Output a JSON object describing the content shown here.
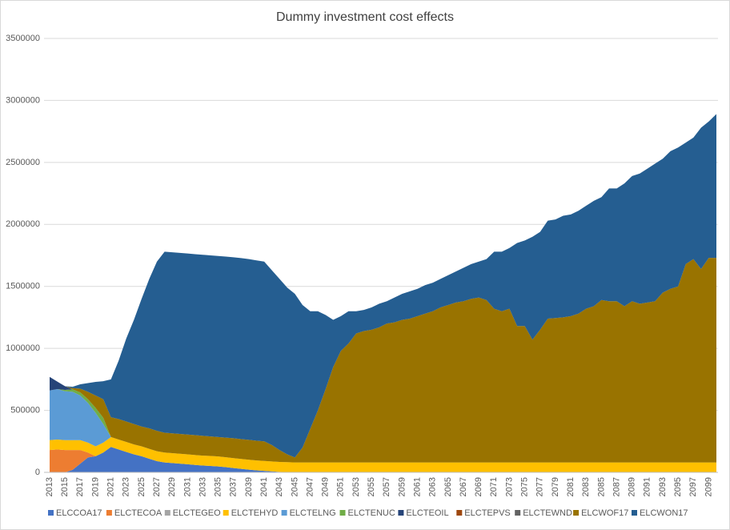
{
  "chart_data": {
    "type": "stacked_area",
    "title": "Dummy investment cost effects",
    "categories": [
      "2013",
      null,
      "2015",
      null,
      "2017",
      null,
      "2019",
      null,
      "2021",
      null,
      "2023",
      null,
      "2025",
      null,
      "2027",
      null,
      "2029",
      null,
      "2031",
      null,
      "2033",
      null,
      "2035",
      null,
      "2037",
      null,
      "2039",
      null,
      "2041",
      null,
      "2043",
      null,
      "2045",
      null,
      "2047",
      null,
      "2049",
      null,
      "2051",
      null,
      "2053",
      null,
      "2055",
      null,
      "2057",
      null,
      "2059",
      null,
      "2061",
      null,
      "2063",
      null,
      "2065",
      null,
      "2067",
      null,
      "2069",
      null,
      "2071",
      null,
      "2073",
      null,
      "2075",
      null,
      "2077",
      null,
      "2079",
      null,
      "2081",
      null,
      "2083",
      null,
      "2085",
      null,
      "2087",
      null,
      "2089",
      null,
      "2091",
      null,
      "2093",
      null,
      "2095",
      null,
      "2097",
      null,
      "2099",
      null
    ],
    "ylim": [
      0,
      3500000
    ],
    "yticks": [
      0,
      500000,
      1000000,
      1500000,
      2000000,
      2500000,
      3000000,
      3500000
    ],
    "grid": true,
    "legend": "bottom",
    "series": [
      {
        "name": "ELCCOA17",
        "color": "#4472c4",
        "values": [
          0,
          0,
          0,
          20000,
          70000,
          120000,
          130000,
          160000,
          205000,
          185000,
          165000,
          145000,
          130000,
          110000,
          90000,
          80000,
          75000,
          70000,
          65000,
          60000,
          55000,
          52000,
          48000,
          42000,
          35000,
          28000,
          22000,
          16000,
          12000,
          8000,
          4000,
          2000,
          0,
          0,
          0,
          0,
          0,
          0,
          0,
          0,
          0,
          0,
          0,
          0,
          0,
          0,
          0,
          0,
          0,
          0,
          0,
          0,
          0,
          0,
          0,
          0,
          0,
          0,
          0,
          0,
          0,
          0,
          0,
          0,
          0,
          0,
          0,
          0,
          0,
          0,
          0,
          0,
          0,
          0,
          0,
          0,
          0,
          0,
          0,
          0,
          0,
          0,
          0,
          0,
          0,
          0,
          0,
          0
        ]
      },
      {
        "name": "ELCTECOA",
        "color": "#ed7d31",
        "values": [
          180000,
          185000,
          180000,
          160000,
          110000,
          40000,
          0,
          0,
          0,
          0,
          0,
          0,
          0,
          0,
          0,
          0,
          0,
          0,
          0,
          0,
          0,
          0,
          0,
          0,
          0,
          0,
          0,
          0,
          0,
          0,
          0,
          0,
          0,
          0,
          0,
          0,
          0,
          0,
          0,
          0,
          0,
          0,
          0,
          0,
          0,
          0,
          0,
          0,
          0,
          0,
          0,
          0,
          0,
          0,
          0,
          0,
          0,
          0,
          0,
          0,
          0,
          0,
          0,
          0,
          0,
          0,
          0,
          0,
          0,
          0,
          0,
          0,
          0,
          0,
          0,
          0,
          0,
          0,
          0,
          0,
          0,
          0,
          0,
          0,
          0,
          0,
          0,
          0
        ]
      },
      {
        "name": "ELCTEGEO",
        "color": "#a5a5a5",
        "values": [
          0,
          0,
          0,
          0,
          0,
          0,
          0,
          0,
          0,
          0,
          0,
          0,
          0,
          0,
          0,
          0,
          0,
          0,
          0,
          0,
          0,
          0,
          0,
          0,
          0,
          0,
          0,
          0,
          0,
          0,
          0,
          0,
          0,
          0,
          0,
          0,
          0,
          0,
          0,
          0,
          0,
          0,
          0,
          0,
          0,
          0,
          0,
          0,
          0,
          0,
          0,
          0,
          0,
          0,
          0,
          0,
          0,
          0,
          0,
          0,
          0,
          0,
          0,
          0,
          0,
          0,
          0,
          0,
          0,
          0,
          0,
          0,
          0,
          0,
          0,
          0,
          0,
          0,
          0,
          0,
          0,
          0,
          0,
          0,
          0,
          0,
          0,
          0
        ]
      },
      {
        "name": "ELCTEHYD",
        "color": "#ffc000",
        "values": [
          80000,
          80000,
          80000,
          80000,
          80000,
          80000,
          80000,
          80000,
          80000,
          80000,
          80000,
          80000,
          80000,
          80000,
          80000,
          80000,
          80000,
          80000,
          80000,
          80000,
          80000,
          80000,
          80000,
          80000,
          80000,
          80000,
          80000,
          80000,
          80000,
          80000,
          80000,
          80000,
          80000,
          80000,
          80000,
          80000,
          80000,
          80000,
          80000,
          80000,
          80000,
          80000,
          80000,
          80000,
          80000,
          80000,
          80000,
          80000,
          80000,
          80000,
          80000,
          80000,
          80000,
          80000,
          80000,
          80000,
          80000,
          80000,
          80000,
          80000,
          80000,
          80000,
          80000,
          80000,
          80000,
          80000,
          80000,
          80000,
          80000,
          80000,
          80000,
          80000,
          80000,
          80000,
          80000,
          80000,
          80000,
          80000,
          80000,
          80000,
          80000,
          80000,
          80000,
          80000,
          80000,
          80000,
          80000,
          80000
        ]
      },
      {
        "name": "ELCTELNG",
        "color": "#5b9bd5",
        "values": [
          400000,
          407000,
          395000,
          390000,
          360000,
          320000,
          270000,
          150000,
          0,
          0,
          0,
          0,
          0,
          0,
          0,
          0,
          0,
          0,
          0,
          0,
          0,
          0,
          0,
          0,
          0,
          0,
          0,
          0,
          0,
          0,
          0,
          0,
          0,
          0,
          0,
          0,
          0,
          0,
          0,
          0,
          0,
          0,
          0,
          0,
          0,
          0,
          0,
          0,
          0,
          0,
          0,
          0,
          0,
          0,
          0,
          0,
          0,
          0,
          0,
          0,
          0,
          0,
          0,
          0,
          0,
          0,
          0,
          0,
          0,
          0,
          0,
          0,
          0,
          0,
          0,
          0,
          0,
          0,
          0,
          0,
          0,
          0,
          0,
          0,
          0,
          0,
          0,
          0
        ]
      },
      {
        "name": "ELCTENUC",
        "color": "#70ad47",
        "values": [
          0,
          0,
          10000,
          20000,
          25000,
          30000,
          40000,
          50000,
          0,
          0,
          0,
          0,
          0,
          0,
          0,
          0,
          0,
          0,
          0,
          0,
          0,
          0,
          0,
          0,
          0,
          0,
          0,
          0,
          0,
          0,
          0,
          0,
          0,
          0,
          0,
          0,
          0,
          0,
          0,
          0,
          0,
          0,
          0,
          0,
          0,
          0,
          0,
          0,
          0,
          0,
          0,
          0,
          0,
          0,
          0,
          0,
          0,
          0,
          0,
          0,
          0,
          0,
          0,
          0,
          0,
          0,
          0,
          0,
          0,
          0,
          0,
          0,
          0,
          0,
          0,
          0,
          0,
          0,
          0,
          0,
          0,
          0,
          0,
          0,
          0,
          0,
          0,
          0
        ]
      },
      {
        "name": "ELCTEOIL",
        "color": "#264478",
        "values": [
          110000,
          60000,
          30000,
          0,
          0,
          0,
          0,
          0,
          0,
          0,
          0,
          0,
          0,
          0,
          0,
          0,
          0,
          0,
          0,
          0,
          0,
          0,
          0,
          0,
          0,
          0,
          0,
          0,
          0,
          0,
          0,
          0,
          0,
          0,
          0,
          0,
          0,
          0,
          0,
          0,
          0,
          0,
          0,
          0,
          0,
          0,
          0,
          0,
          0,
          0,
          0,
          0,
          0,
          0,
          0,
          0,
          0,
          0,
          0,
          0,
          0,
          0,
          0,
          0,
          0,
          0,
          0,
          0,
          0,
          0,
          0,
          0,
          0,
          0,
          0,
          0,
          0,
          0,
          0,
          0,
          0,
          0,
          0,
          0,
          0,
          0,
          0,
          0
        ]
      },
      {
        "name": "ELCTEPVS",
        "color": "#9e480e",
        "values": [
          0,
          0,
          0,
          0,
          0,
          0,
          0,
          0,
          0,
          0,
          0,
          0,
          0,
          0,
          0,
          0,
          0,
          0,
          0,
          0,
          0,
          0,
          0,
          0,
          0,
          0,
          0,
          0,
          0,
          0,
          0,
          0,
          0,
          0,
          0,
          0,
          0,
          0,
          0,
          0,
          0,
          0,
          0,
          0,
          0,
          0,
          0,
          0,
          0,
          0,
          0,
          0,
          0,
          0,
          0,
          0,
          0,
          0,
          0,
          0,
          0,
          0,
          0,
          0,
          0,
          0,
          0,
          0,
          0,
          0,
          0,
          0,
          0,
          0,
          0,
          0,
          0,
          0,
          0,
          0,
          0,
          0,
          0,
          0,
          0,
          0,
          0,
          0
        ]
      },
      {
        "name": "ELCTEWND",
        "color": "#636363",
        "values": [
          0,
          0,
          0,
          0,
          0,
          0,
          0,
          0,
          0,
          0,
          0,
          0,
          0,
          0,
          0,
          0,
          0,
          0,
          0,
          0,
          0,
          0,
          0,
          0,
          0,
          0,
          0,
          0,
          0,
          0,
          0,
          0,
          0,
          0,
          0,
          0,
          0,
          0,
          0,
          0,
          0,
          0,
          0,
          0,
          0,
          0,
          0,
          0,
          0,
          0,
          0,
          0,
          0,
          0,
          0,
          0,
          0,
          0,
          0,
          0,
          0,
          0,
          0,
          0,
          0,
          0,
          0,
          0,
          0,
          0,
          0,
          0,
          0,
          0,
          0,
          0,
          0,
          0,
          0,
          0,
          0,
          0,
          0,
          0,
          0,
          0,
          0,
          0
        ]
      },
      {
        "name": "ELCWOF17",
        "color": "#997300",
        "values": [
          0,
          0,
          0,
          10000,
          30000,
          60000,
          100000,
          150000,
          160000,
          165000,
          165000,
          165000,
          160000,
          165000,
          165000,
          160000,
          160000,
          160000,
          160000,
          160000,
          160000,
          158000,
          157000,
          158000,
          160000,
          160000,
          160000,
          159000,
          158000,
          132000,
          96000,
          63000,
          40000,
          120000,
          270000,
          420000,
          590000,
          770000,
          900000,
          960000,
          1040000,
          1060000,
          1070000,
          1090000,
          1120000,
          1130000,
          1150000,
          1160000,
          1180000,
          1200000,
          1220000,
          1250000,
          1270000,
          1290000,
          1300000,
          1320000,
          1330000,
          1310000,
          1240000,
          1220000,
          1240000,
          1100000,
          1100000,
          990000,
          1070000,
          1160000,
          1165000,
          1170000,
          1180000,
          1200000,
          1240000,
          1260000,
          1310000,
          1300000,
          1300000,
          1260000,
          1300000,
          1280000,
          1290000,
          1300000,
          1370000,
          1400000,
          1420000,
          1600000,
          1640000,
          1560000,
          1650000,
          1650000
        ]
      },
      {
        "name": "ELCWON17",
        "color": "#255e91",
        "values": [
          0,
          0,
          0,
          10000,
          35000,
          70000,
          110000,
          145000,
          305000,
          470000,
          670000,
          840000,
          1030000,
          1205000,
          1365000,
          1460000,
          1460000,
          1460000,
          1460000,
          1460000,
          1460000,
          1460000,
          1460000,
          1460000,
          1460000,
          1460000,
          1458000,
          1455000,
          1450000,
          1410000,
          1380000,
          1345000,
          1320000,
          1150000,
          950000,
          800000,
          600000,
          380000,
          280000,
          260000,
          180000,
          170000,
          180000,
          190000,
          180000,
          200000,
          210000,
          220000,
          220000,
          230000,
          230000,
          230000,
          240000,
          250000,
          270000,
          280000,
          290000,
          330000,
          460000,
          480000,
          490000,
          670000,
          690000,
          830000,
          790000,
          790000,
          795000,
          820000,
          820000,
          830000,
          830000,
          850000,
          830000,
          910000,
          910000,
          990000,
          1010000,
          1050000,
          1080000,
          1110000,
          1080000,
          1110000,
          1120000,
          980000,
          980000,
          1140000,
          1100000,
          1160000
        ]
      }
    ]
  }
}
